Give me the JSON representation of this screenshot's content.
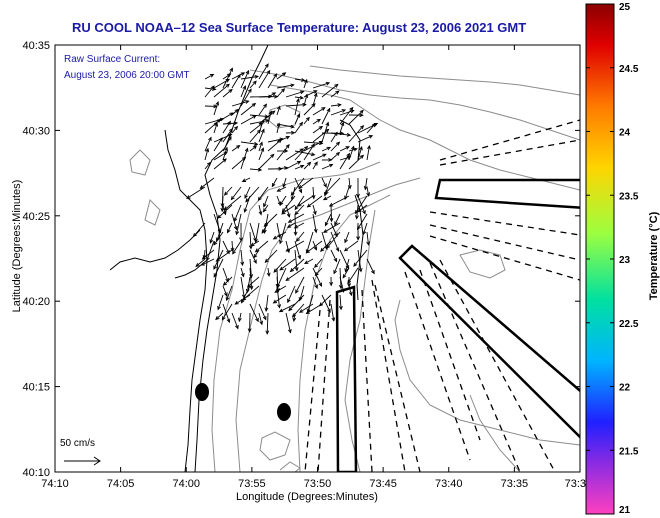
{
  "title": "RU COOL  NOAA–12  Sea Surface Temperature:  August 23, 2006 2021 GMT",
  "info_line1": "Raw Surface Current:",
  "info_line2": "August 23, 2006 20:00 GMT",
  "scale_label": "50 cm/s",
  "xlabel": "Longitude (Degrees:Minutes)",
  "ylabel": "Latitude (Degrees:Minutes)",
  "x_ticks": [
    "74:10",
    "74:05",
    "74:00",
    "73:55",
    "73:50",
    "73:45",
    "73:40",
    "73:35",
    "73:3"
  ],
  "y_ticks": [
    "40:35",
    "40:30",
    "40:25",
    "40:20",
    "40:15",
    "40:10"
  ],
  "colorbar": {
    "label": "Temperature (°C)",
    "ticks": [
      "25",
      "24.5",
      "24",
      "23.5",
      "23",
      "22.5",
      "22",
      "21.5",
      "21"
    ]
  },
  "colors": {
    "title": "#1a1aa6",
    "contour": "#8c8c8c",
    "coast": "#000000"
  }
}
